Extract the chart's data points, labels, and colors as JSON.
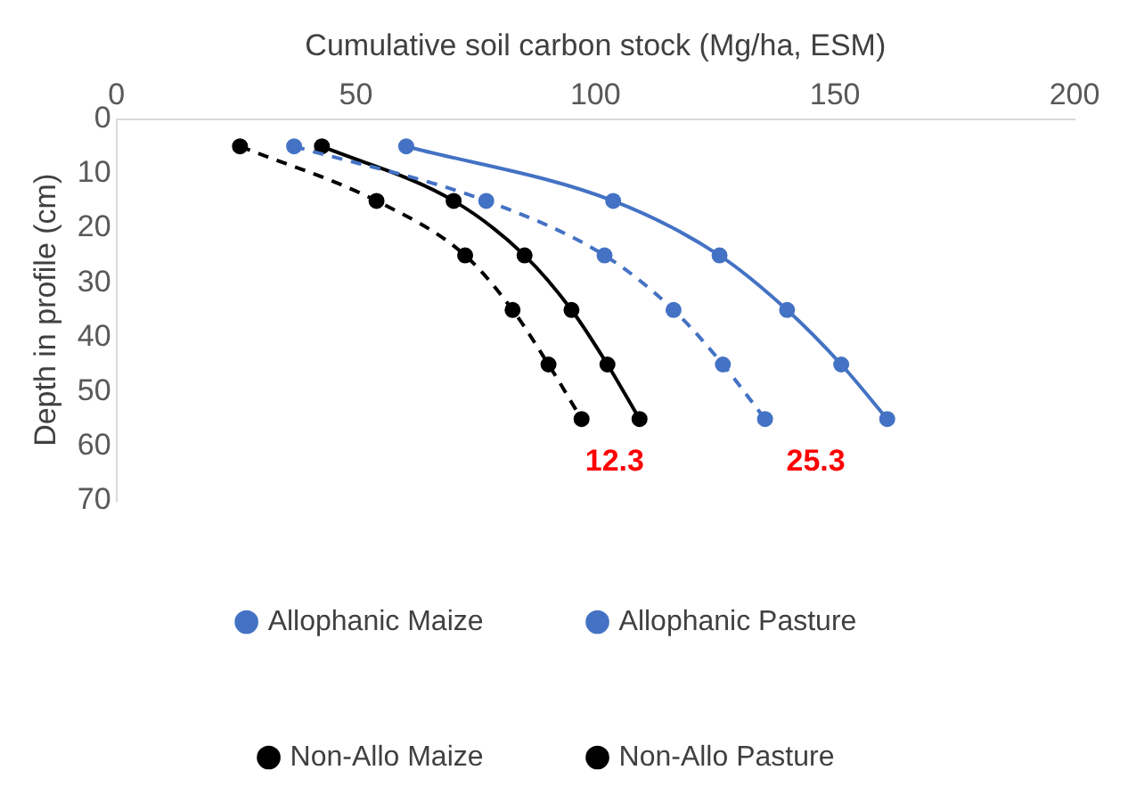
{
  "chart_data": {
    "type": "line",
    "xlabel": "Cumulative soil carbon stock (Mg/ha, ESM)",
    "ylabel": "Depth in profile (cm)",
    "xlim": [
      0,
      200
    ],
    "xticks": [
      0,
      50,
      100,
      150,
      200
    ],
    "ylim": [
      70,
      0
    ],
    "yticks": [
      0,
      10,
      20,
      30,
      40,
      50,
      60,
      70
    ],
    "legend": "bottom",
    "marker": "circle",
    "series": [
      {
        "name": "Allophanic Maize",
        "color": "#4472c4",
        "line_style": "dashed",
        "x": [
          37.1,
          77.2,
          101.9,
          116.3,
          126.6,
          135.4
        ],
        "values": [
          5,
          15,
          25,
          35,
          45,
          55
        ]
      },
      {
        "name": "Allophanic Pasture",
        "color": "#4472c4",
        "line_style": "solid",
        "x": [
          60.5,
          103.7,
          125.9,
          140,
          151.3,
          160.9
        ],
        "values": [
          5,
          15,
          25,
          35,
          45,
          55
        ]
      },
      {
        "name": "Non-Allo Maize",
        "color": "#000000",
        "line_style": "dashed",
        "x": [
          25.8,
          54.3,
          72.8,
          82.7,
          90.2,
          97.1
        ],
        "values": [
          5,
          15,
          25,
          35,
          45,
          55
        ]
      },
      {
        "name": "Non-Allo Pasture",
        "color": "#000000",
        "line_style": "solid",
        "x": [
          42.9,
          70.4,
          85.2,
          95,
          102.5,
          109.2
        ],
        "values": [
          5,
          15,
          25,
          35,
          45,
          55
        ]
      }
    ],
    "annotations": [
      "12.3",
      "25.3"
    ]
  }
}
